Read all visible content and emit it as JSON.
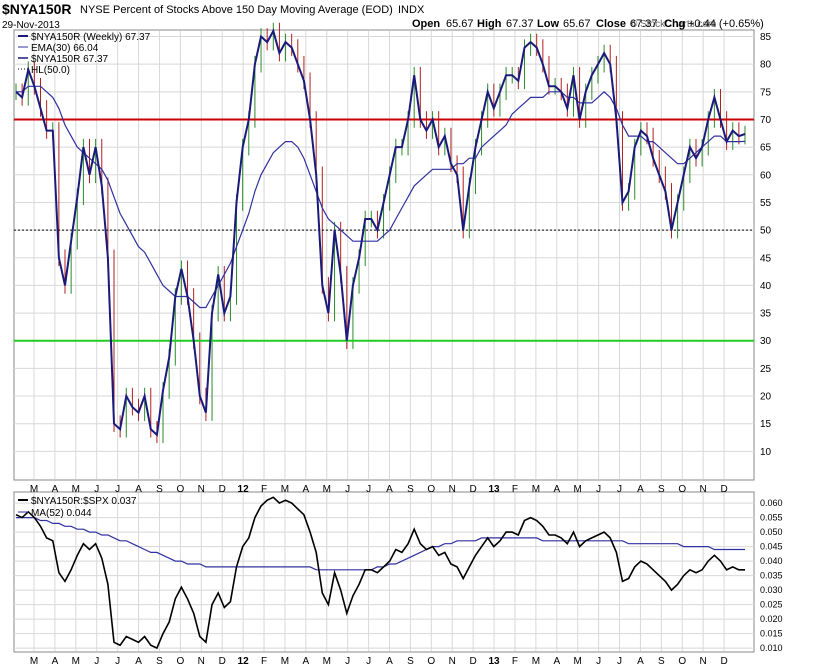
{
  "header": {
    "symbol": "$NYA150R",
    "title": "NYSE Percent of Stocks Above 150 Day Moving Average (EOD)",
    "exchange": "INDX",
    "date": "29-Nov-2013",
    "open_label": "Open",
    "open": "65.67",
    "high_label": "High",
    "high": "67.37",
    "low_label": "Low",
    "low": "65.67",
    "close_label": "Close",
    "close": "67.37",
    "chg_label": "Chg",
    "chg": "+0.44 (+0.65%)",
    "watermark": "© StockCharts.com"
  },
  "legend_top": {
    "price": "$NYA150R (Weekly) 67.37",
    "ema": "EMA(30) 66.04",
    "series2": "$NYA150R 67.37",
    "hl": "HL(50.0)"
  },
  "legend_bottom": {
    "ratio": "$NYA150R:$SPX 0.037",
    "ma": "MA(52) 0.044"
  },
  "colors": {
    "price": "#1a1a7a",
    "ema": "#3030a0",
    "up_bar": "#2a8a2a",
    "down_bar": "#b02020",
    "red_line": "#cc0000",
    "green_line": "#22cc22",
    "ratio": "#000000",
    "ma": "#3030a0",
    "grid": "#d8d8d8"
  },
  "x_labels": [
    "M",
    "A",
    "M",
    "J",
    "J",
    "A",
    "S",
    "O",
    "N",
    "D",
    "12",
    "F",
    "M",
    "A",
    "M",
    "J",
    "J",
    "A",
    "S",
    "O",
    "N",
    "D",
    "13",
    "F",
    "M",
    "A",
    "M",
    "J",
    "J",
    "A",
    "S",
    "O",
    "N",
    "D"
  ],
  "chart_data": [
    {
      "type": "line",
      "title": "NYSE Percent of Stocks Above 150 Day Moving Average (EOD)",
      "ylim": [
        5,
        86
      ],
      "yticks": [
        10,
        15,
        20,
        25,
        30,
        35,
        40,
        45,
        50,
        55,
        60,
        65,
        70,
        75,
        80,
        85
      ],
      "horizontal_lines": [
        {
          "value": 70,
          "color": "red"
        },
        {
          "value": 50,
          "color": "black",
          "style": "dotted"
        },
        {
          "value": 30,
          "color": "green"
        }
      ],
      "series": [
        {
          "name": "$NYA150R (Weekly) 67.37",
          "values": [
            75,
            74,
            79,
            76,
            72,
            68,
            68,
            45,
            40,
            48,
            56,
            65,
            60,
            65,
            58,
            45,
            15,
            14,
            20,
            18,
            17,
            20,
            14,
            13,
            21,
            27,
            38,
            43,
            38,
            30,
            20,
            17,
            35,
            42,
            35,
            38,
            55,
            65,
            70,
            80,
            85,
            84,
            86,
            82,
            84,
            83,
            80,
            77,
            70,
            60,
            40,
            35,
            50,
            42,
            30,
            40,
            45,
            52,
            52,
            50,
            55,
            60,
            65,
            65,
            70,
            78,
            70,
            68,
            70,
            65,
            67,
            62,
            60,
            50,
            58,
            65,
            70,
            75,
            72,
            75,
            78,
            78,
            77,
            83,
            84,
            83,
            80,
            76,
            76,
            75,
            72,
            78,
            70,
            75,
            78,
            80,
            82,
            80,
            70,
            55,
            57,
            65,
            68,
            67,
            63,
            60,
            57,
            50,
            55,
            60,
            65,
            63,
            65,
            70,
            74,
            70,
            66,
            68,
            67,
            67.37
          ]
        },
        {
          "name": "EMA(30) 66.04",
          "values": [
            75,
            75,
            76,
            76,
            76,
            75,
            74,
            72,
            69,
            67,
            65,
            64,
            63,
            62,
            61,
            59,
            56,
            53,
            51,
            49,
            47,
            46,
            44,
            42,
            40,
            39,
            38,
            38,
            38,
            37,
            36,
            36,
            38,
            40,
            42,
            44,
            47,
            50,
            53,
            57,
            60,
            62,
            64,
            65,
            66,
            66,
            65,
            63,
            60,
            57,
            54,
            52,
            51,
            50,
            49,
            48,
            48,
            48,
            48,
            48,
            49,
            50,
            52,
            54,
            56,
            58,
            59,
            60,
            61,
            61,
            61,
            61,
            62,
            62,
            63,
            63,
            65,
            66,
            67,
            68,
            69,
            71,
            72,
            73,
            74,
            74,
            74,
            75,
            75,
            75,
            74,
            74,
            73,
            73,
            73,
            74,
            75,
            74,
            72,
            69,
            67,
            67,
            67,
            66,
            66,
            65,
            64,
            63,
            62,
            62,
            63,
            64,
            65,
            66,
            67,
            67,
            66,
            66,
            66,
            66.04
          ]
        }
      ]
    },
    {
      "type": "line",
      "title": "$NYA150R:$SPX",
      "ylim": [
        0.009,
        0.0635
      ],
      "yticks": [
        0.01,
        0.015,
        0.02,
        0.025,
        0.03,
        0.035,
        0.04,
        0.045,
        0.05,
        0.055,
        0.06
      ],
      "series": [
        {
          "name": "$NYA150R:$SPX 0.037",
          "values": [
            0.056,
            0.055,
            0.057,
            0.055,
            0.052,
            0.048,
            0.047,
            0.036,
            0.033,
            0.037,
            0.042,
            0.046,
            0.044,
            0.046,
            0.041,
            0.032,
            0.012,
            0.011,
            0.014,
            0.013,
            0.012,
            0.014,
            0.011,
            0.01,
            0.015,
            0.019,
            0.027,
            0.031,
            0.027,
            0.022,
            0.014,
            0.012,
            0.025,
            0.029,
            0.024,
            0.026,
            0.038,
            0.045,
            0.048,
            0.055,
            0.059,
            0.061,
            0.062,
            0.06,
            0.061,
            0.06,
            0.058,
            0.056,
            0.05,
            0.043,
            0.029,
            0.025,
            0.036,
            0.03,
            0.022,
            0.028,
            0.032,
            0.037,
            0.037,
            0.036,
            0.038,
            0.04,
            0.044,
            0.043,
            0.046,
            0.051,
            0.046,
            0.044,
            0.045,
            0.042,
            0.043,
            0.039,
            0.038,
            0.034,
            0.038,
            0.042,
            0.045,
            0.048,
            0.045,
            0.047,
            0.05,
            0.05,
            0.049,
            0.054,
            0.055,
            0.054,
            0.052,
            0.049,
            0.049,
            0.048,
            0.046,
            0.05,
            0.045,
            0.047,
            0.048,
            0.049,
            0.05,
            0.048,
            0.043,
            0.033,
            0.034,
            0.038,
            0.04,
            0.039,
            0.037,
            0.035,
            0.033,
            0.03,
            0.032,
            0.035,
            0.037,
            0.036,
            0.037,
            0.04,
            0.042,
            0.04,
            0.037,
            0.038,
            0.037,
            0.037
          ]
        },
        {
          "name": "MA(52) 0.044",
          "values": [
            0.055,
            0.055,
            0.055,
            0.055,
            0.054,
            0.054,
            0.053,
            0.053,
            0.052,
            0.052,
            0.051,
            0.051,
            0.05,
            0.05,
            0.049,
            0.049,
            0.048,
            0.047,
            0.047,
            0.046,
            0.045,
            0.044,
            0.043,
            0.043,
            0.042,
            0.041,
            0.04,
            0.04,
            0.039,
            0.039,
            0.039,
            0.038,
            0.038,
            0.038,
            0.038,
            0.038,
            0.038,
            0.038,
            0.038,
            0.038,
            0.038,
            0.038,
            0.038,
            0.038,
            0.038,
            0.038,
            0.038,
            0.038,
            0.038,
            0.037,
            0.037,
            0.037,
            0.037,
            0.037,
            0.037,
            0.037,
            0.037,
            0.037,
            0.037,
            0.038,
            0.038,
            0.039,
            0.039,
            0.04,
            0.041,
            0.042,
            0.043,
            0.044,
            0.045,
            0.045,
            0.046,
            0.046,
            0.047,
            0.047,
            0.047,
            0.047,
            0.048,
            0.048,
            0.048,
            0.048,
            0.048,
            0.048,
            0.048,
            0.048,
            0.048,
            0.048,
            0.047,
            0.047,
            0.047,
            0.047,
            0.047,
            0.047,
            0.047,
            0.047,
            0.047,
            0.047,
            0.047,
            0.047,
            0.047,
            0.047,
            0.046,
            0.046,
            0.046,
            0.046,
            0.046,
            0.046,
            0.046,
            0.046,
            0.046,
            0.045,
            0.045,
            0.045,
            0.045,
            0.045,
            0.044,
            0.044,
            0.044,
            0.044,
            0.044,
            0.044
          ]
        }
      ]
    }
  ]
}
